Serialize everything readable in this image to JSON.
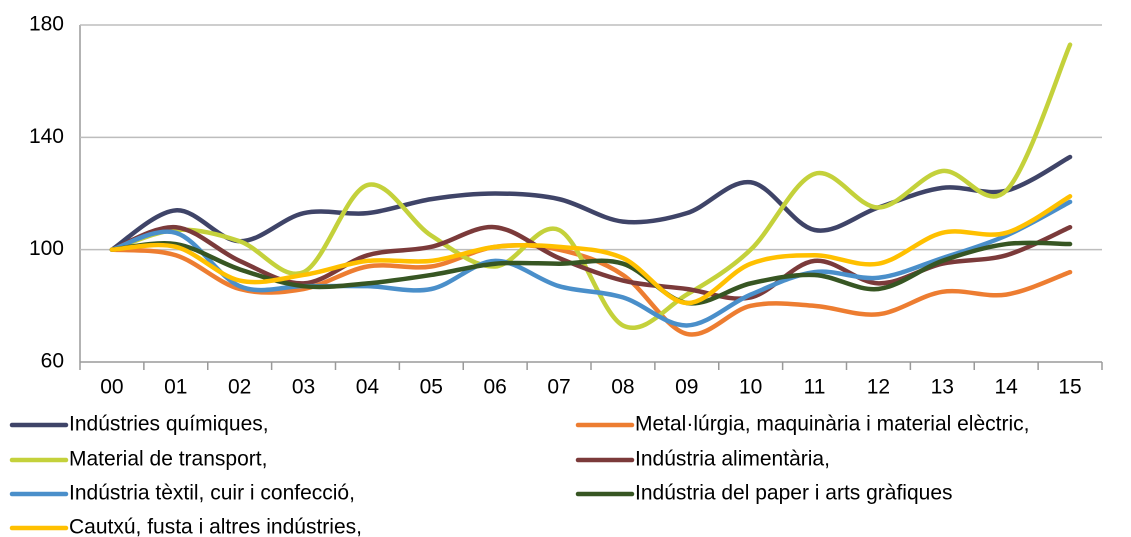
{
  "chart_data": {
    "type": "line",
    "categories": [
      "00",
      "01",
      "02",
      "03",
      "04",
      "05",
      "06",
      "07",
      "08",
      "09",
      "10",
      "11",
      "12",
      "13",
      "14",
      "15"
    ],
    "series": [
      {
        "name": "Indústries químiques,",
        "color": "#3f4468",
        "values": [
          100,
          114,
          103,
          113,
          113,
          118,
          120,
          118,
          110,
          113,
          124,
          107,
          115,
          122,
          121,
          133
        ]
      },
      {
        "name": "Metal·lúrgia, maquinària i material elèctric,",
        "color": "#ed7d31",
        "values": [
          100,
          98,
          86,
          86,
          94,
          94,
          101,
          100,
          91,
          70,
          80,
          80,
          77,
          85,
          84,
          92
        ]
      },
      {
        "name": "Material de transport,",
        "color": "#c4d13b",
        "values": [
          100,
          107,
          103,
          92,
          123,
          105,
          94,
          107,
          73,
          84,
          100,
          127,
          115,
          128,
          121,
          173
        ]
      },
      {
        "name": "Indústria alimentària,",
        "color": "#7b3a3a",
        "values": [
          100,
          108,
          96,
          88,
          98,
          101,
          108,
          97,
          89,
          86,
          83,
          96,
          88,
          95,
          98,
          108
        ]
      },
      {
        "name": "Indústria tèxtil, cuir i confecció,",
        "color": "#4a8fca",
        "values": [
          100,
          106,
          87,
          87,
          87,
          86,
          96,
          87,
          83,
          73,
          84,
          92,
          90,
          97,
          105,
          117
        ]
      },
      {
        "name": "Indústria del paper i arts gràfiques",
        "color": "#375623",
        "values": [
          100,
          102,
          93,
          87,
          88,
          91,
          95,
          95,
          95,
          81,
          88,
          91,
          86,
          96,
          102,
          102
        ]
      },
      {
        "name": "Cautxú, fusta i altres indústries,",
        "color": "#ffc000",
        "values": [
          100,
          101,
          89,
          91,
          96,
          96,
          101,
          101,
          97,
          81,
          95,
          98,
          95,
          106,
          106,
          119
        ]
      }
    ],
    "ylim": [
      60,
      180
    ],
    "yticks": [
      60,
      100,
      140,
      180
    ],
    "grid": true
  }
}
